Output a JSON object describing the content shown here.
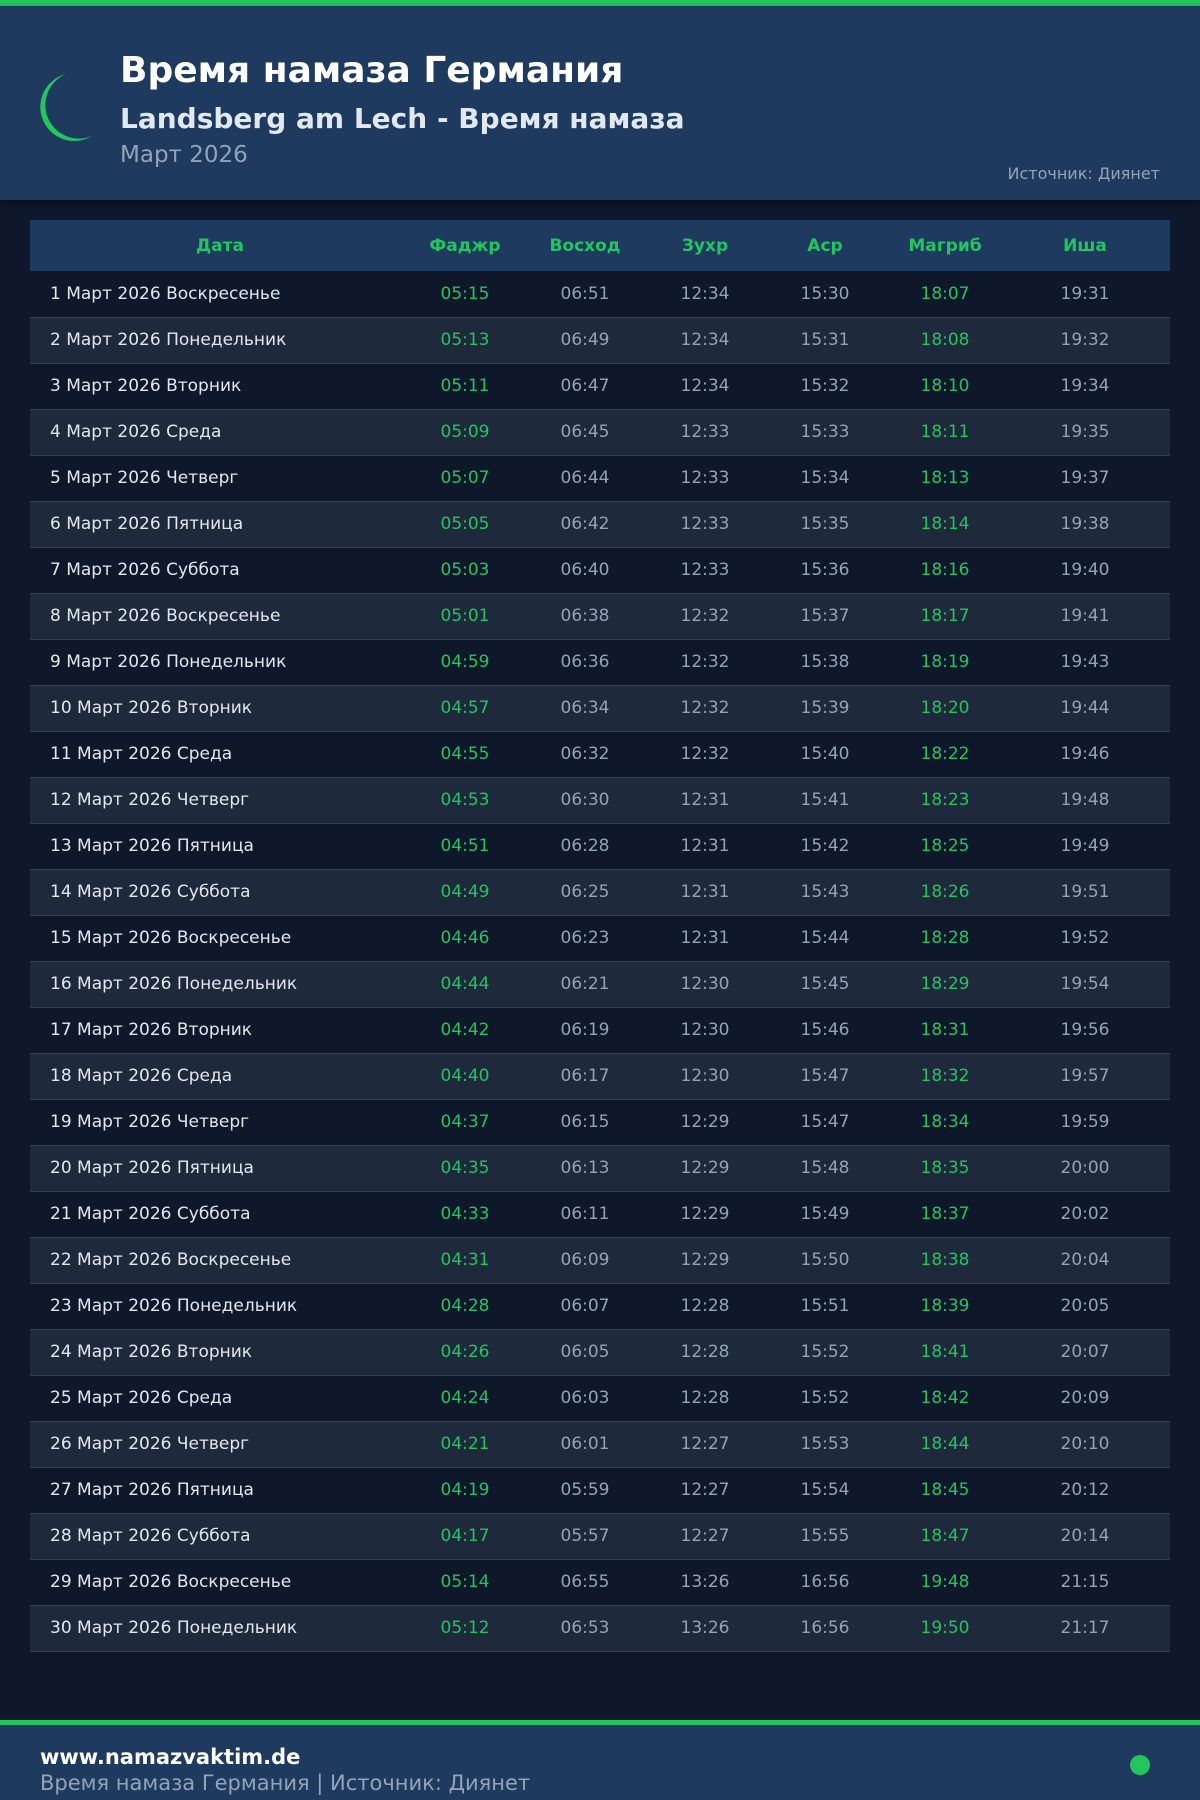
{
  "header": {
    "title": "Время намаза Германия",
    "subtitle": "Landsberg am Lech - Время намаза",
    "month": "Март 2026",
    "source": "Источник: Диянет",
    "icon": "crescent-moon-icon"
  },
  "colors": {
    "accent": "#22c55e",
    "header_bg": "#1e3a5f",
    "page_bg": "#0f172a"
  },
  "table": {
    "columns": [
      "Дата",
      "Фаджр",
      "Восход",
      "Зухр",
      "Аср",
      "Магриб",
      "Иша"
    ],
    "rows": [
      [
        "1 Март 2026 Воскресенье",
        "05:15",
        "06:51",
        "12:34",
        "15:30",
        "18:07",
        "19:31"
      ],
      [
        "2 Март 2026 Понедельник",
        "05:13",
        "06:49",
        "12:34",
        "15:31",
        "18:08",
        "19:32"
      ],
      [
        "3 Март 2026 Вторник",
        "05:11",
        "06:47",
        "12:34",
        "15:32",
        "18:10",
        "19:34"
      ],
      [
        "4 Март 2026 Среда",
        "05:09",
        "06:45",
        "12:33",
        "15:33",
        "18:11",
        "19:35"
      ],
      [
        "5 Март 2026 Четверг",
        "05:07",
        "06:44",
        "12:33",
        "15:34",
        "18:13",
        "19:37"
      ],
      [
        "6 Март 2026 Пятница",
        "05:05",
        "06:42",
        "12:33",
        "15:35",
        "18:14",
        "19:38"
      ],
      [
        "7 Март 2026 Суббота",
        "05:03",
        "06:40",
        "12:33",
        "15:36",
        "18:16",
        "19:40"
      ],
      [
        "8 Март 2026 Воскресенье",
        "05:01",
        "06:38",
        "12:32",
        "15:37",
        "18:17",
        "19:41"
      ],
      [
        "9 Март 2026 Понедельник",
        "04:59",
        "06:36",
        "12:32",
        "15:38",
        "18:19",
        "19:43"
      ],
      [
        "10 Март 2026 Вторник",
        "04:57",
        "06:34",
        "12:32",
        "15:39",
        "18:20",
        "19:44"
      ],
      [
        "11 Март 2026 Среда",
        "04:55",
        "06:32",
        "12:32",
        "15:40",
        "18:22",
        "19:46"
      ],
      [
        "12 Март 2026 Четверг",
        "04:53",
        "06:30",
        "12:31",
        "15:41",
        "18:23",
        "19:48"
      ],
      [
        "13 Март 2026 Пятница",
        "04:51",
        "06:28",
        "12:31",
        "15:42",
        "18:25",
        "19:49"
      ],
      [
        "14 Март 2026 Суббота",
        "04:49",
        "06:25",
        "12:31",
        "15:43",
        "18:26",
        "19:51"
      ],
      [
        "15 Март 2026 Воскресенье",
        "04:46",
        "06:23",
        "12:31",
        "15:44",
        "18:28",
        "19:52"
      ],
      [
        "16 Март 2026 Понедельник",
        "04:44",
        "06:21",
        "12:30",
        "15:45",
        "18:29",
        "19:54"
      ],
      [
        "17 Март 2026 Вторник",
        "04:42",
        "06:19",
        "12:30",
        "15:46",
        "18:31",
        "19:56"
      ],
      [
        "18 Март 2026 Среда",
        "04:40",
        "06:17",
        "12:30",
        "15:47",
        "18:32",
        "19:57"
      ],
      [
        "19 Март 2026 Четверг",
        "04:37",
        "06:15",
        "12:29",
        "15:47",
        "18:34",
        "19:59"
      ],
      [
        "20 Март 2026 Пятница",
        "04:35",
        "06:13",
        "12:29",
        "15:48",
        "18:35",
        "20:00"
      ],
      [
        "21 Март 2026 Суббота",
        "04:33",
        "06:11",
        "12:29",
        "15:49",
        "18:37",
        "20:02"
      ],
      [
        "22 Март 2026 Воскресенье",
        "04:31",
        "06:09",
        "12:29",
        "15:50",
        "18:38",
        "20:04"
      ],
      [
        "23 Март 2026 Понедельник",
        "04:28",
        "06:07",
        "12:28",
        "15:51",
        "18:39",
        "20:05"
      ],
      [
        "24 Март 2026 Вторник",
        "04:26",
        "06:05",
        "12:28",
        "15:52",
        "18:41",
        "20:07"
      ],
      [
        "25 Март 2026 Среда",
        "04:24",
        "06:03",
        "12:28",
        "15:52",
        "18:42",
        "20:09"
      ],
      [
        "26 Март 2026 Четверг",
        "04:21",
        "06:01",
        "12:27",
        "15:53",
        "18:44",
        "20:10"
      ],
      [
        "27 Март 2026 Пятница",
        "04:19",
        "05:59",
        "12:27",
        "15:54",
        "18:45",
        "20:12"
      ],
      [
        "28 Март 2026 Суббота",
        "04:17",
        "05:57",
        "12:27",
        "15:55",
        "18:47",
        "20:14"
      ],
      [
        "29 Март 2026 Воскресенье",
        "05:14",
        "06:55",
        "13:26",
        "16:56",
        "19:48",
        "21:15"
      ],
      [
        "30 Март 2026 Понедельник",
        "05:12",
        "06:53",
        "13:26",
        "16:56",
        "19:50",
        "21:17"
      ]
    ]
  },
  "footer": {
    "site": "www.namazvaktim.de",
    "text": "Время намаза Германия | Источник: Диянет"
  }
}
